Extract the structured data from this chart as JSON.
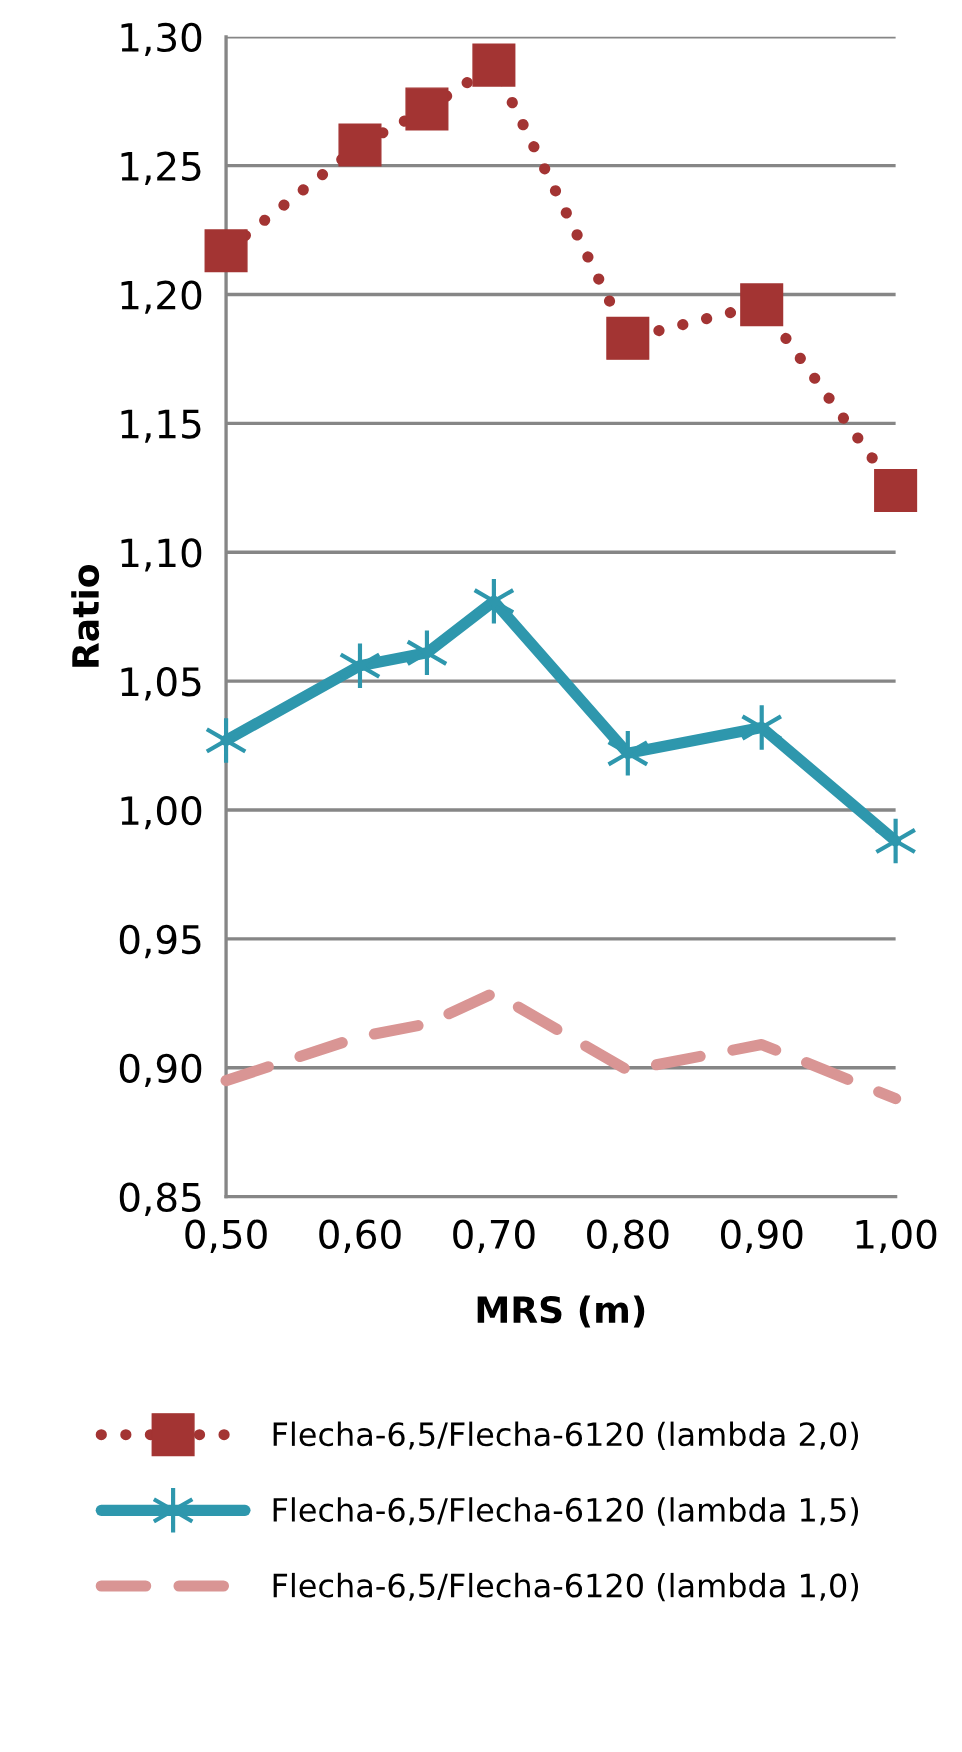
{
  "chart_data": {
    "type": "line",
    "xlabel": "MRS (m)",
    "ylabel": "Ratio",
    "x": [
      0.5,
      0.6,
      0.65,
      0.7,
      0.8,
      0.9,
      1.0
    ],
    "series": [
      {
        "name": "Flecha-6,5/Flecha-6120 (lambda 2,0)",
        "color": "#a33433",
        "marker": "square",
        "line_style": "dotted",
        "values": [
          1.217,
          1.258,
          1.272,
          1.289,
          1.183,
          1.196,
          1.124
        ]
      },
      {
        "name": "Flecha-6,5/Flecha-6120 (lambda 1,5)",
        "color": "#2e97ad",
        "marker": "cross",
        "line_style": "solid",
        "values": [
          1.027,
          1.056,
          1.061,
          1.081,
          1.022,
          1.032,
          0.988
        ]
      },
      {
        "name": "Flecha-6,5/Flecha-6120 (lambda 1,0)",
        "color": "#d99594",
        "marker": "none",
        "line_style": "dashed",
        "values": [
          0.895,
          0.912,
          0.917,
          0.929,
          0.899,
          0.909,
          0.888
        ]
      }
    ],
    "xlim": [
      0.5,
      1.0
    ],
    "xticks": [
      {
        "value": 0.5,
        "label": "0,50"
      },
      {
        "value": 0.6,
        "label": "0,60"
      },
      {
        "value": 0.7,
        "label": "0,70"
      },
      {
        "value": 0.8,
        "label": "0,80"
      },
      {
        "value": 0.9,
        "label": "0,90"
      },
      {
        "value": 1.0,
        "label": "1,00"
      }
    ],
    "ylim": [
      0.85,
      1.3
    ],
    "yticks": [
      {
        "value": 0.85,
        "label": "0,85"
      },
      {
        "value": 0.9,
        "label": "0,90"
      },
      {
        "value": 0.95,
        "label": "0,95"
      },
      {
        "value": 1.0,
        "label": "1,00"
      },
      {
        "value": 1.05,
        "label": "1,05"
      },
      {
        "value": 1.1,
        "label": "1,10"
      },
      {
        "value": 1.15,
        "label": "1,15"
      },
      {
        "value": 1.2,
        "label": "1,20"
      },
      {
        "value": 1.25,
        "label": "1,25"
      },
      {
        "value": 1.3,
        "label": "1,30"
      }
    ],
    "grid": "y",
    "legend": "bottom"
  }
}
